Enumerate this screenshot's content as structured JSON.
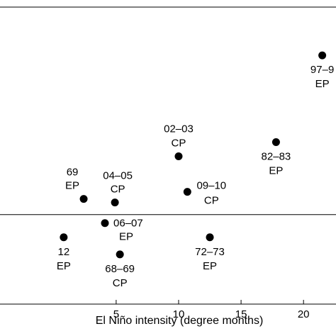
{
  "chart_data": {
    "type": "scatter",
    "title": "",
    "xlabel": "El Niño intensity (degree months)",
    "ylabel": "",
    "xlim": [
      -4.3,
      22.6
    ],
    "ylim": [
      -6.3,
      14.6
    ],
    "x_ticks": [
      5,
      10,
      15,
      20
    ],
    "grid": false,
    "hlines": [
      0
    ],
    "series": [
      {
        "points": [
          {
            "x": 21.5,
            "y": 11.2,
            "label_lines": [
              "97–9",
              "EP"
            ]
          },
          {
            "x": 17.8,
            "y": 5.1,
            "label_lines": [
              "82–83",
              "EP"
            ]
          },
          {
            "x": 10.0,
            "y": 4.1,
            "label_lines": [
              "02–03",
              "CP"
            ]
          },
          {
            "x": 2.4,
            "y": 1.1,
            "label_lines": [
              "69",
              "EP"
            ]
          },
          {
            "x": 4.9,
            "y": 0.85,
            "label_lines": [
              "04–05",
              "CP"
            ]
          },
          {
            "x": 10.7,
            "y": 1.6,
            "label_lines": [
              "09–10",
              "CP"
            ]
          },
          {
            "x": 4.1,
            "y": -0.6,
            "label_lines": [
              "06–07",
              "EP"
            ]
          },
          {
            "x": 0.8,
            "y": -1.6,
            "label_lines": [
              "12",
              "EP"
            ]
          },
          {
            "x": 5.3,
            "y": -2.8,
            "label_lines": [
              "68–69",
              "CP"
            ]
          },
          {
            "x": 12.5,
            "y": -1.6,
            "label_lines": [
              "72–73",
              "EP"
            ]
          }
        ]
      }
    ]
  }
}
